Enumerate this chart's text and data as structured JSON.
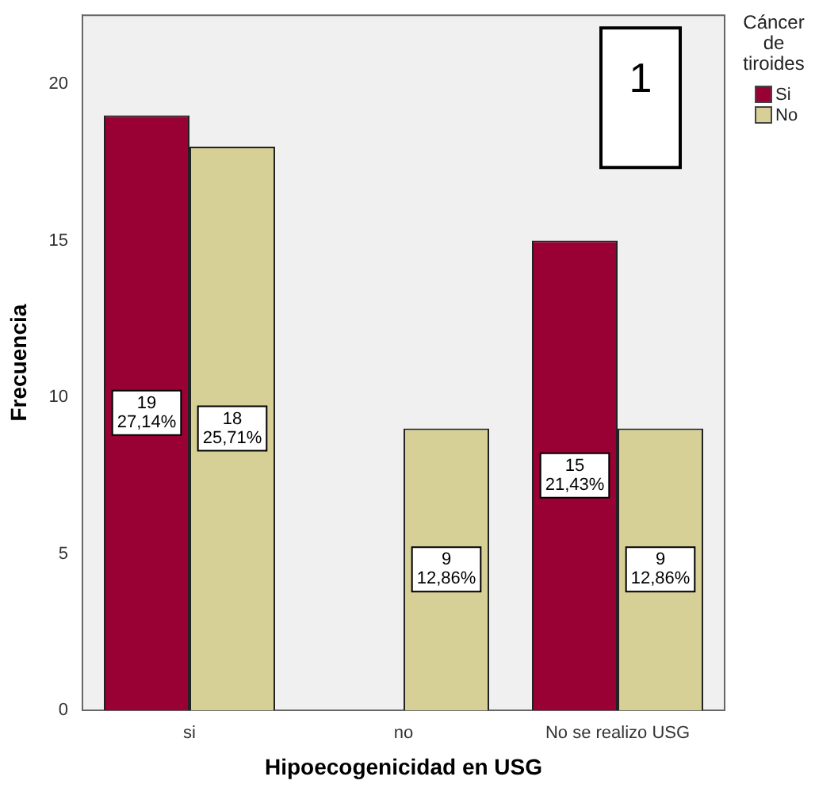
{
  "chart_data": {
    "type": "bar",
    "xlabel": "Hipoecogenicidad en USG",
    "ylabel": "Frecuencia",
    "legend_title": "Cáncer de tiroides",
    "legend": "right",
    "categories": [
      "si",
      "no",
      "No se realizo USG"
    ],
    "series": [
      {
        "name": "Si",
        "color": "#990033",
        "values": [
          19,
          null,
          15
        ],
        "value_labels": [
          "19\n27,14%",
          null,
          "15\n21,43%"
        ]
      },
      {
        "name": "No",
        "color": "#d6cf96",
        "values": [
          18,
          9,
          9
        ],
        "value_labels": [
          "18\n25,71%",
          "9\n12,86%",
          "9\n12,86%"
        ]
      }
    ],
    "ylim": [
      0,
      22.2
    ],
    "yticks": [
      0,
      5,
      10,
      15,
      20
    ],
    "grid": false,
    "annotations": [
      "1"
    ]
  }
}
